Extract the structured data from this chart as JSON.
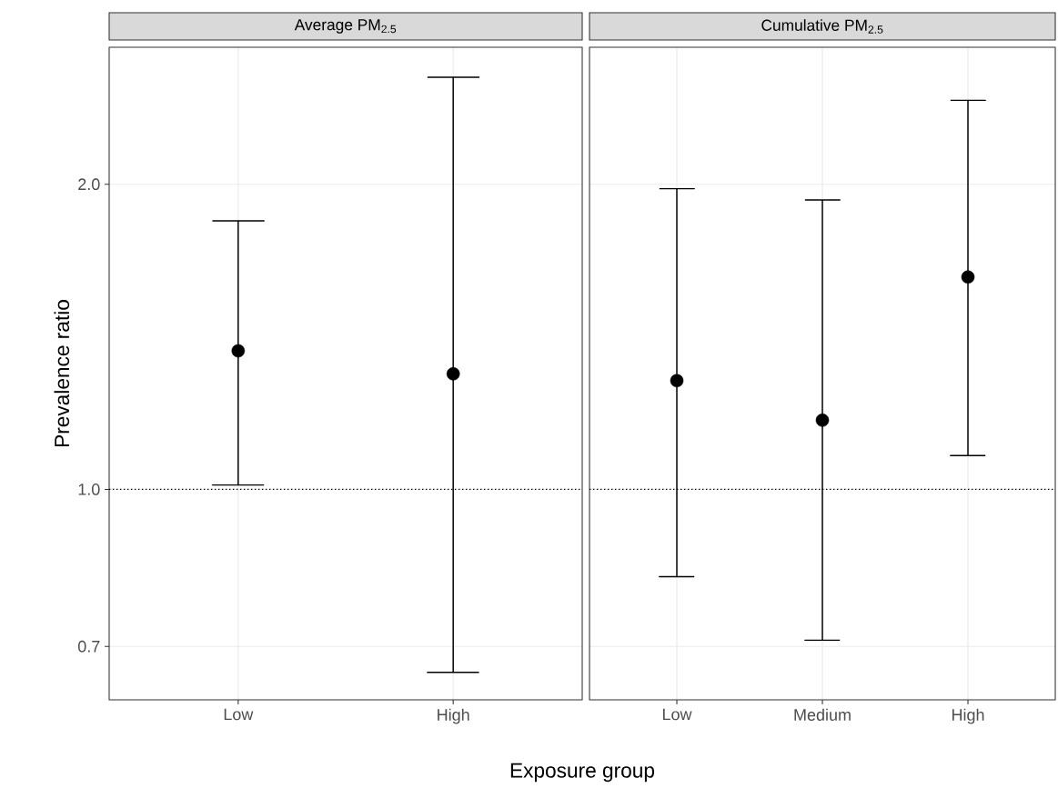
{
  "chart_data": [
    {
      "type": "scatter",
      "title": "Average PM$_{2.5}$",
      "xlabel": "Exposure group",
      "ylabel": "Prevalence ratio",
      "categories": [
        "Low",
        "High"
      ],
      "values": [
        1.37,
        1.3
      ],
      "errors": [
        [
          1.01,
          1.84
        ],
        [
          0.66,
          2.55
        ]
      ],
      "color": "#000000",
      "marker": "circle",
      "log": "y",
      "ylim": [
        0.62,
        2.73
      ],
      "yticks": [
        {
          "value": 0.7,
          "label": "0.7"
        },
        {
          "value": 1,
          "label": "1.0"
        },
        {
          "value": 2,
          "label": "2.0"
        }
      ],
      "grid": true,
      "ref_lines": [
        {
          "axis": "y",
          "value": 1,
          "line_style": "dotted"
        }
      ]
    },
    {
      "type": "scatter",
      "title": "Cumulative PM$_{2.5}$",
      "categories": [
        "Low",
        "Medium",
        "High"
      ],
      "values": [
        1.28,
        1.17,
        1.62
      ],
      "errors": [
        [
          0.82,
          1.98
        ],
        [
          0.71,
          1.93
        ],
        [
          1.08,
          2.42
        ]
      ],
      "color": "#000000",
      "marker": "circle",
      "log": "y",
      "ylim": [
        0.62,
        2.73
      ],
      "yticks": [
        0.7,
        1,
        2
      ],
      "grid": true,
      "tick_labels": "x",
      "ref_lines": [
        {
          "axis": "y",
          "value": 1,
          "line_style": "dotted"
        }
      ]
    }
  ]
}
